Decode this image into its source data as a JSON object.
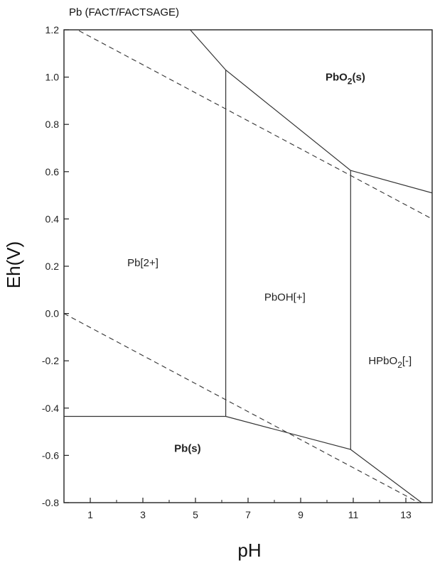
{
  "chart_data": {
    "type": "line",
    "title": "Pb (FACT/FACTSAGE)",
    "xlabel": "pH",
    "ylabel": "Eh(V)",
    "xlim": [
      0,
      14
    ],
    "ylim": [
      -0.8,
      1.2
    ],
    "xticks": [
      1,
      3,
      5,
      7,
      9,
      11,
      13
    ],
    "yticks": [
      -0.8,
      -0.6,
      -0.4,
      -0.2,
      0.0,
      0.2,
      0.4,
      0.6,
      0.8,
      1.0,
      1.2
    ],
    "ytick_labels": [
      "-0.8",
      "-0.6",
      "-0.4",
      "-0.2",
      "0.0",
      "0.2",
      "0.4",
      "0.6",
      "0.8",
      "1.0",
      "1.2"
    ],
    "grid": false,
    "boundaries": [
      {
        "style": "solid",
        "points": [
          [
            4.8,
            1.2
          ],
          [
            6.15,
            1.03
          ],
          [
            10.9,
            0.605
          ],
          [
            14,
            0.51
          ]
        ]
      },
      {
        "style": "solid",
        "points": [
          [
            6.15,
            1.03
          ],
          [
            6.15,
            -0.435
          ]
        ]
      },
      {
        "style": "solid",
        "points": [
          [
            10.9,
            0.605
          ],
          [
            10.9,
            -0.575
          ]
        ]
      },
      {
        "style": "solid",
        "points": [
          [
            0,
            -0.435
          ],
          [
            6.15,
            -0.435
          ],
          [
            10.9,
            -0.575
          ],
          [
            13.6,
            -0.8
          ]
        ]
      }
    ],
    "water_lines": [
      {
        "style": "dashed",
        "points": [
          [
            0,
            1.23
          ],
          [
            14,
            0.4
          ]
        ]
      },
      {
        "style": "dashed",
        "points": [
          [
            0,
            0.0
          ],
          [
            14,
            -0.83
          ]
        ]
      }
    ],
    "regions": [
      {
        "main": "PbO",
        "sub": "2",
        "tail": "(s)",
        "x": 10.7,
        "y": 0.985,
        "bold": true
      },
      {
        "main": "Pb[2+]",
        "sub": "",
        "tail": "",
        "x": 3.0,
        "y": 0.2,
        "bold": false
      },
      {
        "main": "PbOH[+]",
        "sub": "",
        "tail": "",
        "x": 8.4,
        "y": 0.055,
        "bold": false
      },
      {
        "main": "HPbO",
        "sub": "2",
        "tail": "[-]",
        "x": 12.4,
        "y": -0.215,
        "bold": false
      },
      {
        "main": "Pb",
        "sub": "",
        "tail": "(s)",
        "x": 4.7,
        "y": -0.585,
        "bold": true
      }
    ]
  }
}
